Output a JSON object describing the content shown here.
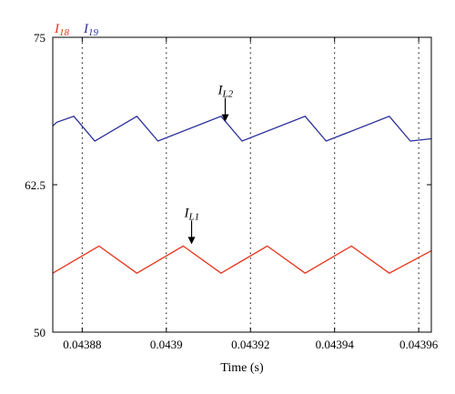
{
  "chart_data": {
    "type": "line",
    "title": "",
    "xlabel": "Time (s)",
    "ylabel": "",
    "xlim": [
      0.043873,
      0.043963
    ],
    "ylim": [
      50,
      75
    ],
    "x_ticks": [
      0.04388,
      0.0439,
      0.04392,
      0.04394,
      0.04396
    ],
    "x_tick_labels": [
      "0.04388",
      "0.0439",
      "0.04392",
      "0.04394",
      "0.04396"
    ],
    "y_ticks": [
      50,
      62.5,
      75
    ],
    "y_tick_labels": [
      "50",
      "62.5",
      "75"
    ],
    "grid": "x-only, dotted",
    "legend": "top-left, above plot",
    "series": [
      {
        "name": "I18",
        "legend_main": "I",
        "legend_sub": "18",
        "color": "#e8341c",
        "x": [
          0.043873,
          0.043884,
          0.043893,
          0.043904,
          0.043913,
          0.043924,
          0.043933,
          0.043944,
          0.043953,
          0.043963
        ],
        "y": [
          55.0,
          57.3,
          55.0,
          57.3,
          55.0,
          57.3,
          55.0,
          57.3,
          55.0,
          56.9
        ]
      },
      {
        "name": "I19",
        "legend_main": "I",
        "legend_sub": "19",
        "color": "#2a2f9a",
        "x": [
          0.043873,
          0.043874,
          0.043878,
          0.043883,
          0.043893,
          0.043898,
          0.043913,
          0.043918,
          0.043933,
          0.043938,
          0.043953,
          0.043958,
          0.043963
        ],
        "y": [
          67.5,
          67.8,
          68.3,
          66.2,
          68.3,
          66.2,
          68.3,
          66.2,
          68.3,
          66.2,
          68.3,
          66.2,
          66.4
        ]
      }
    ],
    "annotations": [
      {
        "id": "il1",
        "main": "I",
        "sub": "L1",
        "x": 0.043906,
        "y": 57.3,
        "color": "#000000"
      },
      {
        "id": "il2",
        "main": "I",
        "sub": "L2",
        "x": 0.043914,
        "y": 67.7,
        "color": "#000000"
      }
    ]
  }
}
